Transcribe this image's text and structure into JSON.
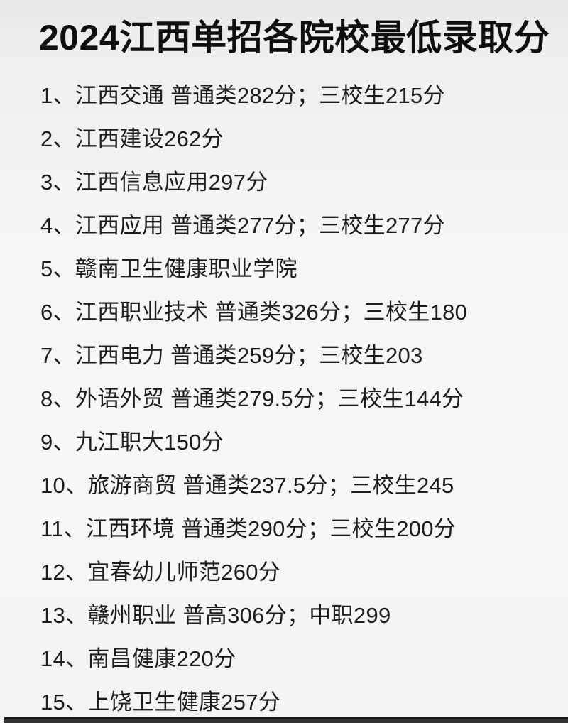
{
  "page": {
    "title": "2024江西单招各院校最低录取分",
    "colors": {
      "background": "#f3f3f3",
      "text": "#1d1d1d",
      "title_text": "#0f0f0f",
      "bottom_bar": "#333333"
    }
  },
  "list": {
    "items": [
      {
        "text": "1、江西交通 普通类282分；三校生215分"
      },
      {
        "text": "2、江西建设262分"
      },
      {
        "text": "3、江西信息应用297分"
      },
      {
        "text": "4、江西应用 普通类277分；三校生277分"
      },
      {
        "text": "5、赣南卫生健康职业学院"
      },
      {
        "text": "6、江西职业技术 普通类326分；三校生180"
      },
      {
        "text": "7、江西电力 普通类259分；三校生203"
      },
      {
        "text": "8、外语外贸 普通类279.5分；三校生144分"
      },
      {
        "text": "9、九江职大150分"
      },
      {
        "text": "10、旅游商贸 普通类237.5分；三校生245"
      },
      {
        "text": "11、江西环境 普通类290分；三校生200分"
      },
      {
        "text": "12、宜春幼儿师范260分"
      },
      {
        "text": "13、赣州职业 普高306分；中职299"
      },
      {
        "text": "14、南昌健康220分"
      },
      {
        "text": "15、上饶卫生健康257分"
      }
    ]
  }
}
